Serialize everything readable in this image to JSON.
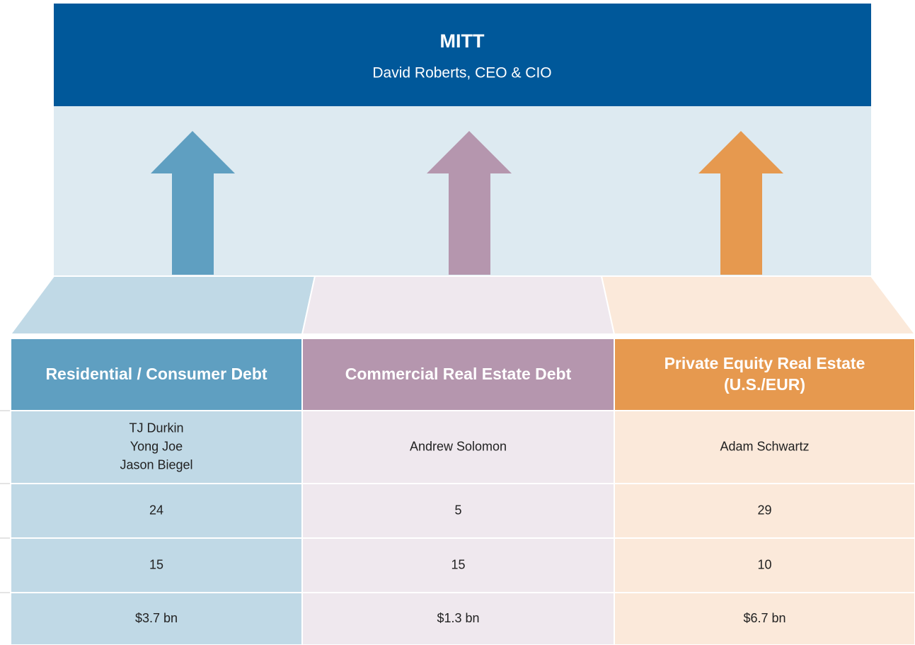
{
  "header": {
    "title": "MITT",
    "subtitle": "David Roberts, CEO & CIO"
  },
  "columns": [
    {
      "title": [
        "Residential / Consumer Debt"
      ],
      "cells": [
        [
          "TJ Durkin",
          "Yong Joe",
          "Jason Biegel"
        ],
        24,
        15,
        "$3.7 bn"
      ]
    },
    {
      "title": [
        "Commercial Real Estate Debt"
      ],
      "cells": [
        "Andrew Solomon",
        5,
        15,
        "$1.3 bn"
      ]
    },
    {
      "title": [
        "Private Equity Real Estate",
        "(U.S./EUR)"
      ],
      "cells": [
        "Adam Schwartz",
        29,
        10,
        "$6.7 bn"
      ]
    }
  ]
}
